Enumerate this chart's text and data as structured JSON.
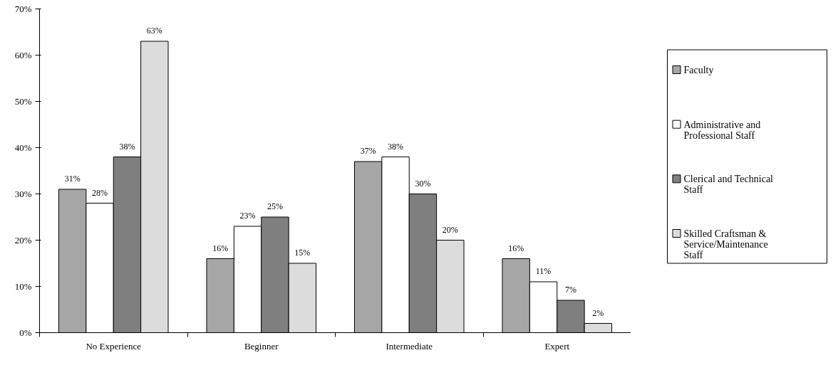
{
  "chart_data": {
    "type": "bar",
    "categories": [
      "No Experience",
      "Beginner",
      "Intermediate",
      "Expert"
    ],
    "series": [
      {
        "name": "Faculty",
        "color": "#a6a6a6",
        "values": [
          31,
          16,
          37,
          16
        ],
        "value_labels": [
          "31%",
          "16%",
          "37%",
          "16%"
        ]
      },
      {
        "name": "Administrative and Professional Staff",
        "color": "#ffffff",
        "values": [
          28,
          23,
          38,
          11
        ],
        "value_labels": [
          "28%",
          "23%",
          "38%",
          "11%"
        ]
      },
      {
        "name": "Clerical and Technical Staff",
        "color": "#7f7f7f",
        "values": [
          38,
          25,
          30,
          7
        ],
        "value_labels": [
          "38%",
          "25%",
          "30%",
          "7%"
        ]
      },
      {
        "name": "Skilled Craftsman & Service/Maintenance Staff",
        "color": "#dcdcdc",
        "values": [
          63,
          15,
          20,
          2
        ],
        "value_labels": [
          "63%",
          "15%",
          "20%",
          "2%"
        ]
      }
    ],
    "ylim": [
      0,
      70
    ],
    "yticks": [
      {
        "value": 0,
        "label": "0%"
      },
      {
        "value": 10,
        "label": "10%"
      },
      {
        "value": 20,
        "label": "20%"
      },
      {
        "value": 30,
        "label": "30%"
      },
      {
        "value": 40,
        "label": "40%"
      },
      {
        "value": 50,
        "label": "50%"
      },
      {
        "value": 60,
        "label": "60%"
      },
      {
        "value": 70,
        "label": "70%"
      }
    ],
    "grid": false,
    "legend": "right"
  }
}
